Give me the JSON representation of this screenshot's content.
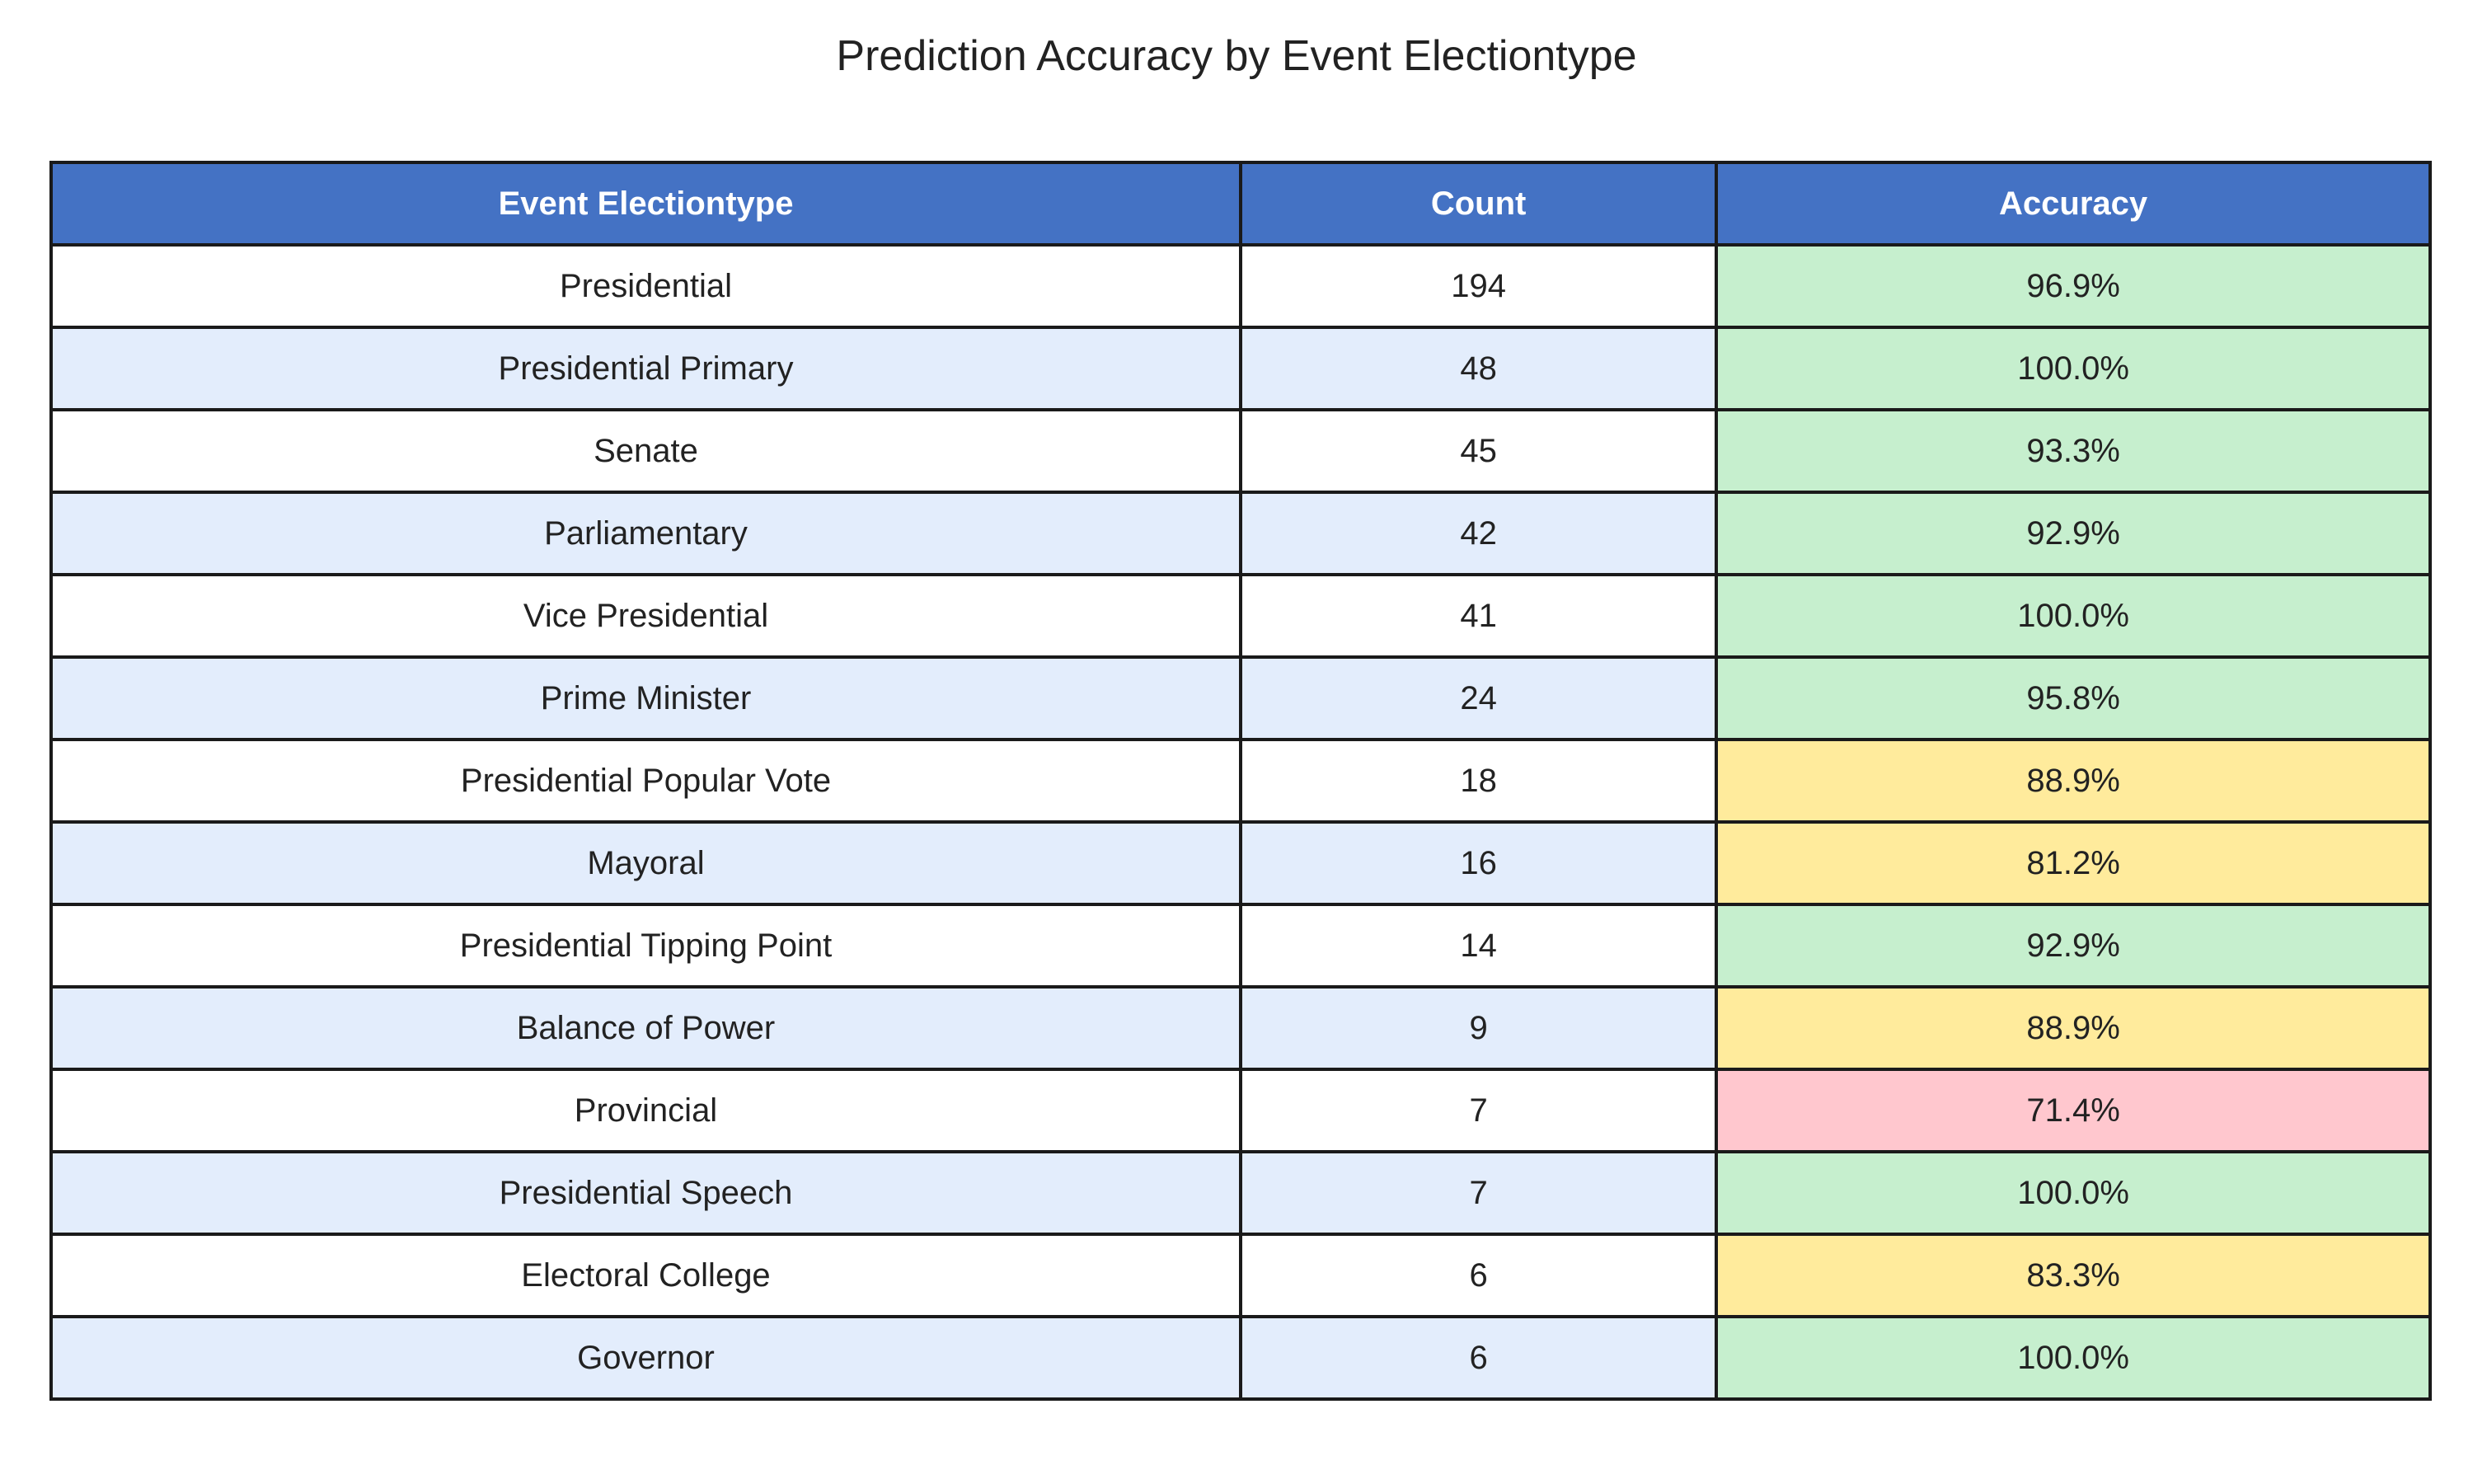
{
  "chart_data": {
    "type": "table",
    "title": "Prediction Accuracy by Event Electiontype",
    "columns": [
      "Event Electiontype",
      "Count",
      "Accuracy"
    ],
    "rows": [
      {
        "type": "Presidential",
        "count": "194",
        "accuracy": "96.9%",
        "accuracy_value": 96.9
      },
      {
        "type": "Presidential Primary",
        "count": "48",
        "accuracy": "100.0%",
        "accuracy_value": 100.0
      },
      {
        "type": "Senate",
        "count": "45",
        "accuracy": "93.3%",
        "accuracy_value": 93.3
      },
      {
        "type": "Parliamentary",
        "count": "42",
        "accuracy": "92.9%",
        "accuracy_value": 92.9
      },
      {
        "type": "Vice Presidential",
        "count": "41",
        "accuracy": "100.0%",
        "accuracy_value": 100.0
      },
      {
        "type": "Prime Minister",
        "count": "24",
        "accuracy": "95.8%",
        "accuracy_value": 95.8
      },
      {
        "type": "Presidential Popular Vote",
        "count": "18",
        "accuracy": "88.9%",
        "accuracy_value": 88.9
      },
      {
        "type": "Mayoral",
        "count": "16",
        "accuracy": "81.2%",
        "accuracy_value": 81.2
      },
      {
        "type": "Presidential Tipping Point",
        "count": "14",
        "accuracy": "92.9%",
        "accuracy_value": 92.9
      },
      {
        "type": "Balance of Power",
        "count": "9",
        "accuracy": "88.9%",
        "accuracy_value": 88.9
      },
      {
        "type": "Provincial",
        "count": "7",
        "accuracy": "71.4%",
        "accuracy_value": 71.4
      },
      {
        "type": "Presidential Speech",
        "count": "7",
        "accuracy": "100.0%",
        "accuracy_value": 100.0
      },
      {
        "type": "Electoral College",
        "count": "6",
        "accuracy": "83.3%",
        "accuracy_value": 83.3
      },
      {
        "type": "Governor",
        "count": "6",
        "accuracy": "100.0%",
        "accuracy_value": 100.0
      }
    ],
    "colors": {
      "header": "#4472c4",
      "row_alt": "#e3edfc",
      "acc_high": "#c6efce",
      "acc_mid": "#ffeb9c",
      "acc_low": "#ffc7ce"
    }
  }
}
